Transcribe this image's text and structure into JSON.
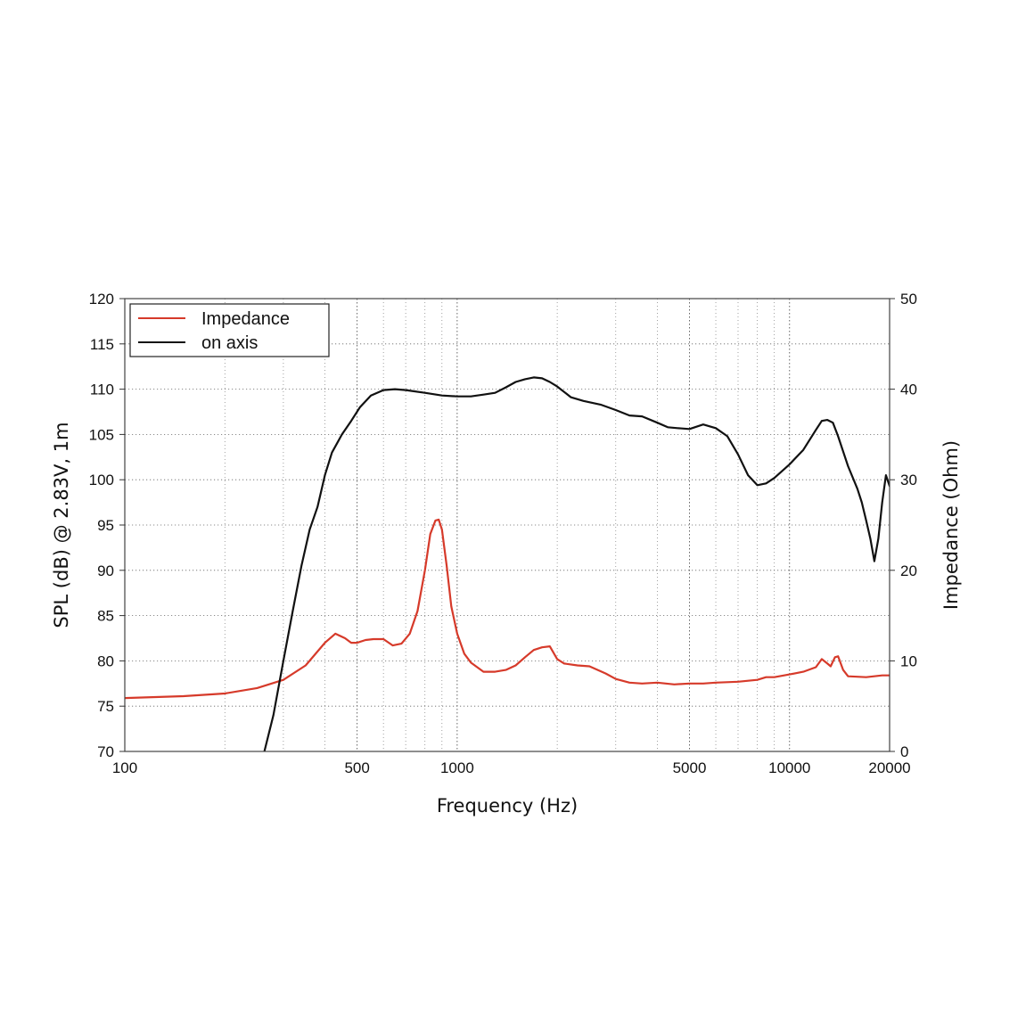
{
  "chart_data": {
    "type": "line",
    "xlabel": "Frequency (Hz)",
    "ylabel": "SPL (dB) @ 2.83V, 1m",
    "y2label": "Impedance (Ohm)",
    "x_scale": "log",
    "xlim": [
      100,
      20000
    ],
    "ylim": [
      70,
      120
    ],
    "y2lim": [
      0,
      50
    ],
    "x_ticks": [
      100,
      500,
      1000,
      5000,
      10000,
      20000
    ],
    "x_tick_labels": [
      "100",
      "500",
      "1000",
      "5000",
      "10000",
      "20000"
    ],
    "y_ticks": [
      70,
      75,
      80,
      85,
      90,
      95,
      100,
      105,
      110,
      115,
      120
    ],
    "y_tick_labels": [
      "70",
      "75",
      "80",
      "85",
      "90",
      "95",
      "100",
      "105",
      "110",
      "115",
      "120"
    ],
    "y2_ticks": [
      0,
      10,
      20,
      30,
      40,
      50
    ],
    "y2_tick_labels": [
      "0",
      "10",
      "20",
      "30",
      "40",
      "50"
    ],
    "grid": true,
    "legend_position": "top-left",
    "series": [
      {
        "name": "Impedance",
        "axis": "right",
        "color": "#d63a2a",
        "x": [
          100,
          150,
          200,
          250,
          300,
          350,
          400,
          430,
          460,
          480,
          500,
          530,
          560,
          600,
          640,
          680,
          720,
          760,
          800,
          830,
          860,
          880,
          900,
          930,
          960,
          1000,
          1050,
          1100,
          1200,
          1300,
          1400,
          1500,
          1600,
          1700,
          1800,
          1900,
          2000,
          2100,
          2300,
          2500,
          2800,
          3000,
          3300,
          3600,
          4000,
          4500,
          5000,
          5500,
          6000,
          7000,
          8000,
          8500,
          9000,
          10000,
          11000,
          12000,
          12500,
          13000,
          13300,
          13700,
          14000,
          14500,
          15000,
          17000,
          19000,
          20000
        ],
        "values": [
          5.9,
          6.1,
          6.4,
          7.0,
          7.9,
          9.5,
          12.0,
          13.0,
          12.5,
          12.0,
          12.0,
          12.3,
          12.4,
          12.4,
          11.7,
          11.9,
          13.0,
          15.5,
          20.0,
          24.0,
          25.5,
          25.6,
          24.5,
          20.5,
          16.0,
          13.0,
          10.8,
          9.8,
          8.8,
          8.8,
          9.0,
          9.5,
          10.4,
          11.2,
          11.5,
          11.6,
          10.2,
          9.7,
          9.5,
          9.4,
          8.6,
          8.0,
          7.6,
          7.5,
          7.6,
          7.4,
          7.5,
          7.5,
          7.6,
          7.7,
          7.9,
          8.2,
          8.2,
          8.5,
          8.8,
          9.3,
          10.2,
          9.7,
          9.4,
          10.4,
          10.5,
          9.0,
          8.3,
          8.2,
          8.4,
          8.4
        ]
      },
      {
        "name": "on axis",
        "axis": "left",
        "color": "#111111",
        "x": [
          263,
          280,
          300,
          320,
          340,
          360,
          380,
          400,
          420,
          450,
          480,
          510,
          550,
          600,
          650,
          700,
          800,
          900,
          1000,
          1100,
          1200,
          1300,
          1400,
          1500,
          1600,
          1700,
          1800,
          1900,
          2000,
          2200,
          2400,
          2700,
          3000,
          3300,
          3600,
          4000,
          4300,
          4600,
          5000,
          5500,
          6000,
          6500,
          7000,
          7500,
          8000,
          8500,
          9000,
          10000,
          11000,
          12000,
          12500,
          13000,
          13500,
          14000,
          15000,
          16000,
          16500,
          17000,
          17500,
          18000,
          18500,
          19000,
          19500,
          20000
        ],
        "values": [
          70.0,
          74.0,
          80.0,
          85.5,
          90.5,
          94.5,
          97.0,
          100.5,
          103.0,
          105.0,
          106.5,
          108.0,
          109.3,
          109.9,
          110.0,
          109.9,
          109.6,
          109.3,
          109.2,
          109.2,
          109.4,
          109.6,
          110.2,
          110.8,
          111.1,
          111.3,
          111.2,
          110.8,
          110.3,
          109.1,
          108.7,
          108.3,
          107.7,
          107.1,
          107.0,
          106.3,
          105.8,
          105.7,
          105.6,
          106.1,
          105.7,
          104.8,
          102.8,
          100.5,
          99.4,
          99.6,
          100.2,
          101.7,
          103.3,
          105.5,
          106.5,
          106.6,
          106.3,
          104.8,
          101.5,
          99.0,
          97.5,
          95.5,
          93.5,
          91.0,
          93.5,
          97.5,
          100.5,
          99.3
        ]
      }
    ]
  }
}
